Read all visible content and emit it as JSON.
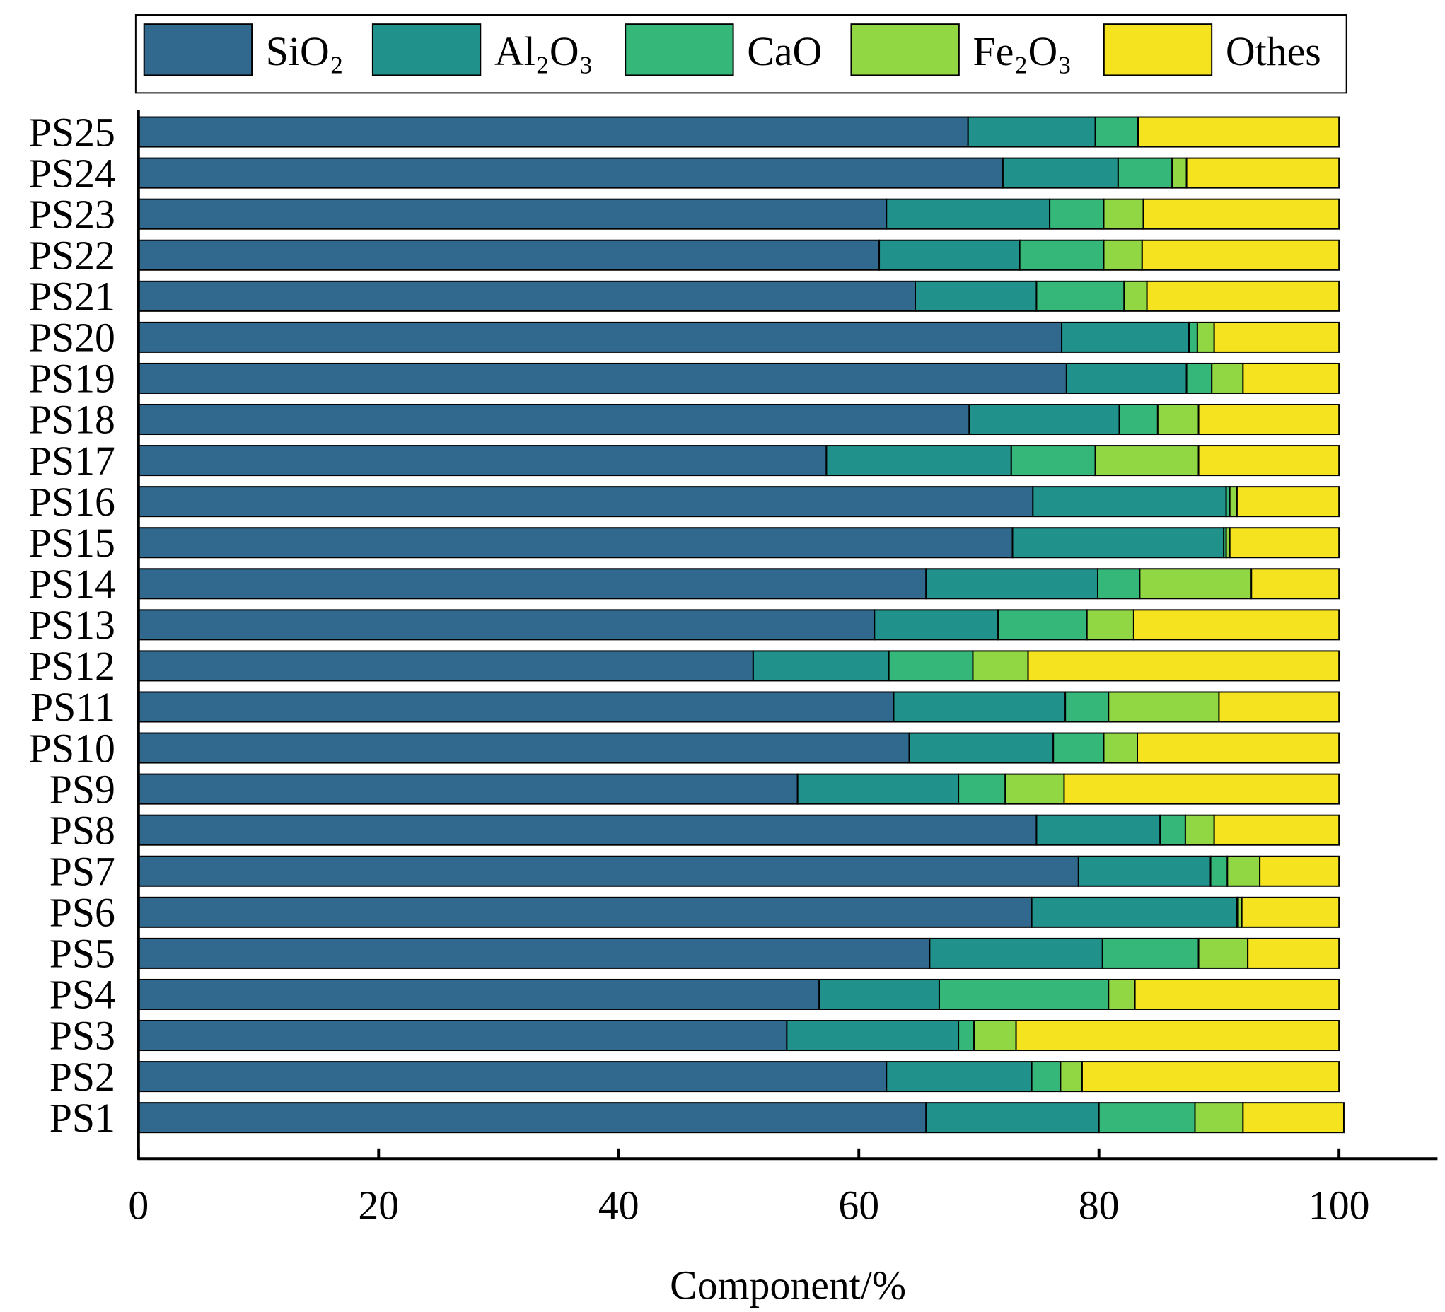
{
  "chart_data": {
    "type": "bar",
    "orientation": "horizontal",
    "stacked": true,
    "title": "",
    "xlabel": "Component/%",
    "ylabel": "",
    "xlim": [
      0,
      100
    ],
    "xticks": [
      "0",
      "20",
      "40",
      "60",
      "80",
      "100"
    ],
    "legend_position": "top",
    "categories": [
      "PS1",
      "PS2",
      "PS3",
      "PS4",
      "PS5",
      "PS6",
      "PS7",
      "PS8",
      "PS9",
      "PS10",
      "PS11",
      "PS12",
      "PS13",
      "PS14",
      "PS15",
      "PS16",
      "PS17",
      "PS18",
      "PS19",
      "PS20",
      "PS21",
      "PS22",
      "PS23",
      "PS24",
      "PS25"
    ],
    "series": [
      {
        "name": "SiO₂",
        "color": "#31688e",
        "values": [
          65.6,
          62.3,
          54.0,
          56.7,
          65.9,
          74.4,
          78.3,
          74.8,
          54.9,
          64.2,
          62.9,
          51.2,
          61.3,
          65.6,
          72.8,
          74.5,
          57.3,
          69.2,
          77.3,
          76.9,
          64.7,
          61.7,
          62.3,
          72.0,
          69.1
        ]
      },
      {
        "name": "Al₂O₃",
        "color": "#21918c",
        "values": [
          14.4,
          12.1,
          14.3,
          10.0,
          14.4,
          17.1,
          11.0,
          10.3,
          13.4,
          12.0,
          14.3,
          11.3,
          10.3,
          14.3,
          17.6,
          16.1,
          15.4,
          12.5,
          10.0,
          10.6,
          10.1,
          11.7,
          13.6,
          9.6,
          10.6
        ]
      },
      {
        "name": "CaO",
        "color": "#35b779",
        "values": [
          8.0,
          2.4,
          1.3,
          14.1,
          8.0,
          0.1,
          1.4,
          2.1,
          3.9,
          4.2,
          3.6,
          7.0,
          7.4,
          3.5,
          0.2,
          0.3,
          7.0,
          3.2,
          2.1,
          0.7,
          7.3,
          7.0,
          4.5,
          4.5,
          3.5
        ]
      },
      {
        "name": "Fe₂O₃",
        "color": "#90d743",
        "values": [
          4.0,
          1.8,
          3.5,
          2.2,
          4.1,
          0.3,
          2.7,
          2.4,
          4.9,
          2.8,
          9.2,
          4.6,
          3.9,
          9.3,
          0.3,
          0.6,
          8.6,
          3.4,
          2.6,
          1.4,
          1.9,
          3.2,
          3.3,
          1.2,
          0.1
        ]
      },
      {
        "name": "Othes",
        "color": "#f5e31f",
        "values": [
          8.4,
          21.4,
          26.9,
          17.0,
          7.6,
          8.1,
          6.6,
          10.4,
          22.9,
          16.8,
          10.0,
          25.9,
          17.1,
          7.3,
          9.1,
          8.5,
          11.7,
          11.7,
          8.0,
          10.4,
          16.0,
          16.4,
          16.3,
          12.7,
          16.7
        ]
      }
    ]
  }
}
